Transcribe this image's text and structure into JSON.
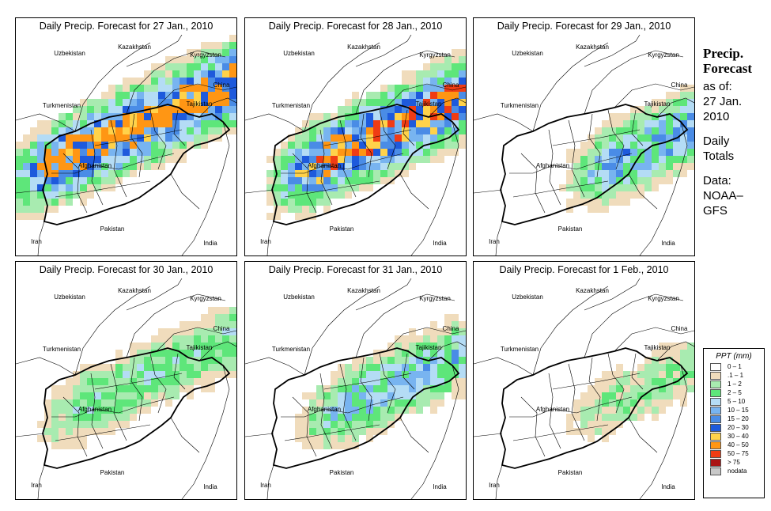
{
  "panels": [
    {
      "title": "Daily Precip. Forecast for  27 Jan., 2010",
      "intensity": 1.0,
      "shift": 0.0
    },
    {
      "title": "Daily Precip. Forecast for  28 Jan., 2010",
      "intensity": 1.0,
      "shift": 0.25
    },
    {
      "title": "Daily Precip. Forecast for  29 Jan., 2010",
      "intensity": 0.6,
      "shift": 0.75
    },
    {
      "title": "Daily Precip. Forecast for  30 Jan., 2010",
      "intensity": 0.35,
      "shift": 0.2
    },
    {
      "title": "Daily Precip. Forecast for  31 Jan., 2010",
      "intensity": 0.5,
      "shift": 0.45
    },
    {
      "title": "Daily Precip. Forecast for  1 Feb., 2010",
      "intensity": 0.25,
      "shift": 0.7
    }
  ],
  "map_labels": {
    "uzbekistan": "Uzbekistan",
    "kazakhstan": "Kazakhstan",
    "kyrgyzstan": "Kyrgyzstan",
    "turkmenistan": "Turkmenistan",
    "tajikistan": "Tajikistan",
    "china": "China",
    "afghanistan": "Afghanistan",
    "pakistan": "Pakistan",
    "iran": "Iran",
    "india": "India"
  },
  "side": {
    "title_line1": "Precip.",
    "title_line2": "Forecast",
    "asof_line1": "as of:",
    "asof_line2": "27 Jan.",
    "asof_line3": "2010",
    "totals_line1": "Daily",
    "totals_line2": "Totals",
    "data_line1": "Data:",
    "data_line2": "NOAA–",
    "data_line3": "GFS"
  },
  "legend": {
    "title": "PPT (mm)",
    "items": [
      {
        "label": "0 – 1",
        "color": "#ffffff"
      },
      {
        "label": ".1 – 1",
        "color": "#f0dcbc"
      },
      {
        "label": "1 – 2",
        "color": "#a8ebb0"
      },
      {
        "label": "2 – 5",
        "color": "#5ee67a"
      },
      {
        "label": "5 – 10",
        "color": "#b4dcf5"
      },
      {
        "label": "10 – 15",
        "color": "#78b4f0"
      },
      {
        "label": "15 – 20",
        "color": "#4a8ce6"
      },
      {
        "label": "20 – 30",
        "color": "#1e5adc"
      },
      {
        "label": "30 – 40",
        "color": "#ffd24a"
      },
      {
        "label": "40 – 50",
        "color": "#ff9614"
      },
      {
        "label": "50 – 75",
        "color": "#f03c14"
      },
      {
        "label": "> 75",
        "color": "#aa1414"
      },
      {
        "label": "nodata",
        "color": "#c8c8c8"
      }
    ]
  }
}
